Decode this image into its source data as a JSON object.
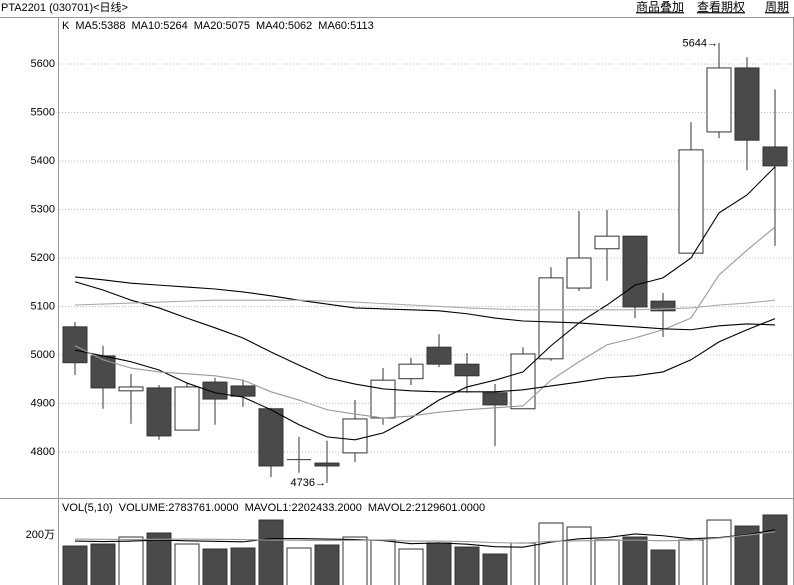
{
  "header": {
    "title": "PTA2201 (030701)<日线>",
    "links": [
      "商品叠加",
      "查看期权",
      "周期"
    ]
  },
  "chart_data": [
    {
      "type": "candlestick",
      "label": "K",
      "open": [
        5058,
        4998,
        4926,
        4932,
        4845,
        4944,
        4936,
        4889,
        4784,
        4777,
        4798,
        4870,
        4951,
        5016,
        4981,
        4922,
        4889,
        4992,
        5138,
        5219,
        5245,
        5111,
        5210,
        5460,
        5592,
        5429
      ],
      "close": [
        4984,
        4932,
        4934,
        4833,
        4934,
        4909,
        4915,
        4771,
        4784,
        4771,
        4868,
        4948,
        4981,
        4981,
        4957,
        4897,
        5002,
        5159,
        5200,
        5245,
        5099,
        5091,
        5423,
        5592,
        5443,
        5390
      ],
      "high": [
        5068,
        5019,
        4961,
        4938,
        4942,
        4953,
        4948,
        4891,
        4831,
        4823,
        4907,
        4973,
        4994,
        5043,
        5004,
        4940,
        5016,
        5181,
        5297,
        5299,
        5245,
        5128,
        5480,
        5644,
        5614,
        5548
      ],
      "low": [
        4959,
        4889,
        4858,
        4825,
        4845,
        4856,
        4893,
        4748,
        4757,
        4736,
        4779,
        4856,
        4938,
        4975,
        4922,
        4812,
        4889,
        4988,
        5132,
        5153,
        5076,
        5037,
        5210,
        5447,
        5381,
        5225
      ],
      "up_color": "#ffffff",
      "down_color": "#4a4a4a",
      "edge_color": "#333333",
      "ylim": [
        4707,
        5695
      ],
      "yticks": [
        4800,
        4900,
        5000,
        5100,
        5200,
        5300,
        5400,
        5500,
        5600
      ],
      "grid": true,
      "series": [
        {
          "name": "MA5:5388",
          "color": "#000000",
          "values": [
            5010,
            4998,
            4986,
            4969,
            4942,
            4922,
            4913,
            4887,
            4856,
            4831,
            4825,
            4839,
            4870,
            4907,
            4934,
            4948,
            4965,
            5019,
            5066,
            5103,
            5144,
            5159,
            5200,
            5293,
            5330,
            5388
          ]
        },
        {
          "name": "MA10:5264",
          "color": "#999999",
          "values": [
            5019,
            4990,
            4973,
            4965,
            4961,
            4957,
            4948,
            4924,
            4907,
            4887,
            4878,
            4870,
            4874,
            4882,
            4887,
            4891,
            4895,
            4948,
            4986,
            5021,
            5035,
            5052,
            5076,
            5165,
            5216,
            5264
          ]
        },
        {
          "name": "MA20:5075",
          "color": "#000000",
          "values": [
            5151,
            5134,
            5113,
            5097,
            5076,
            5056,
            5035,
            5006,
            4979,
            4953,
            4940,
            4930,
            4926,
            4924,
            4924,
            4924,
            4928,
            4936,
            4944,
            4953,
            4957,
            4965,
            4990,
            5027,
            5052,
            5075
          ]
        },
        {
          "name": "MA40:5062",
          "color": "#000000",
          "values": [
            5161,
            5155,
            5148,
            5144,
            5140,
            5136,
            5130,
            5122,
            5113,
            5105,
            5097,
            5095,
            5093,
            5091,
            5085,
            5076,
            5070,
            5068,
            5066,
            5062,
            5058,
            5054,
            5052,
            5060,
            5064,
            5062
          ]
        },
        {
          "name": "MA60:5113",
          "color": "#aaaaaa",
          "values": [
            5103,
            5105,
            5107,
            5109,
            5111,
            5113,
            5113,
            5113,
            5113,
            5111,
            5109,
            5106,
            5103,
            5100,
            5097,
            5095,
            5093,
            5093,
            5093,
            5093,
            5093,
            5095,
            5097,
            5103,
            5107,
            5113
          ]
        }
      ],
      "annotations": [
        {
          "text": "5644→",
          "at": "high"
        },
        {
          "text": "4736→",
          "at": "low"
        }
      ]
    },
    {
      "type": "bar",
      "title": "VOL(5,10)",
      "name": "VOLUME:2783761.0000",
      "values": [
        1567000,
        1646000,
        1920000,
        2077000,
        1646000,
        1450000,
        1489000,
        2586000,
        1489000,
        1607000,
        1920000,
        1803000,
        1450000,
        1685000,
        1528000,
        1254000,
        1685000,
        2469000,
        2312000,
        1803000,
        1920000,
        1411000,
        1803000,
        2586000,
        2351000,
        2783761
      ],
      "ylim": [
        0,
        3410000
      ],
      "yticks": [
        {
          "value": 2000000,
          "label": "200万"
        }
      ],
      "series": [
        {
          "name": "MAVOL1:2202433.2000",
          "color": "#000000",
          "values": [
            1760000,
            1740000,
            1760000,
            1800000,
            1770000,
            1750000,
            1730000,
            1860000,
            1860000,
            1840000,
            1820000,
            1780000,
            1660000,
            1690000,
            1640000,
            1540000,
            1520000,
            1720000,
            1850000,
            1900000,
            2040000,
            1970000,
            1850000,
            1900000,
            2010000,
            2202433.2
          ]
        },
        {
          "name": "MAVOL2:2129601.0000",
          "color": "#999999",
          "values": [
            1840000,
            1830000,
            1820000,
            1830000,
            1840000,
            1830000,
            1820000,
            1800000,
            1790000,
            1780000,
            1790000,
            1800000,
            1760000,
            1760000,
            1740000,
            1700000,
            1680000,
            1750000,
            1770000,
            1780000,
            1800000,
            1770000,
            1790000,
            1880000,
            1990000,
            2129601
          ]
        }
      ]
    }
  ]
}
